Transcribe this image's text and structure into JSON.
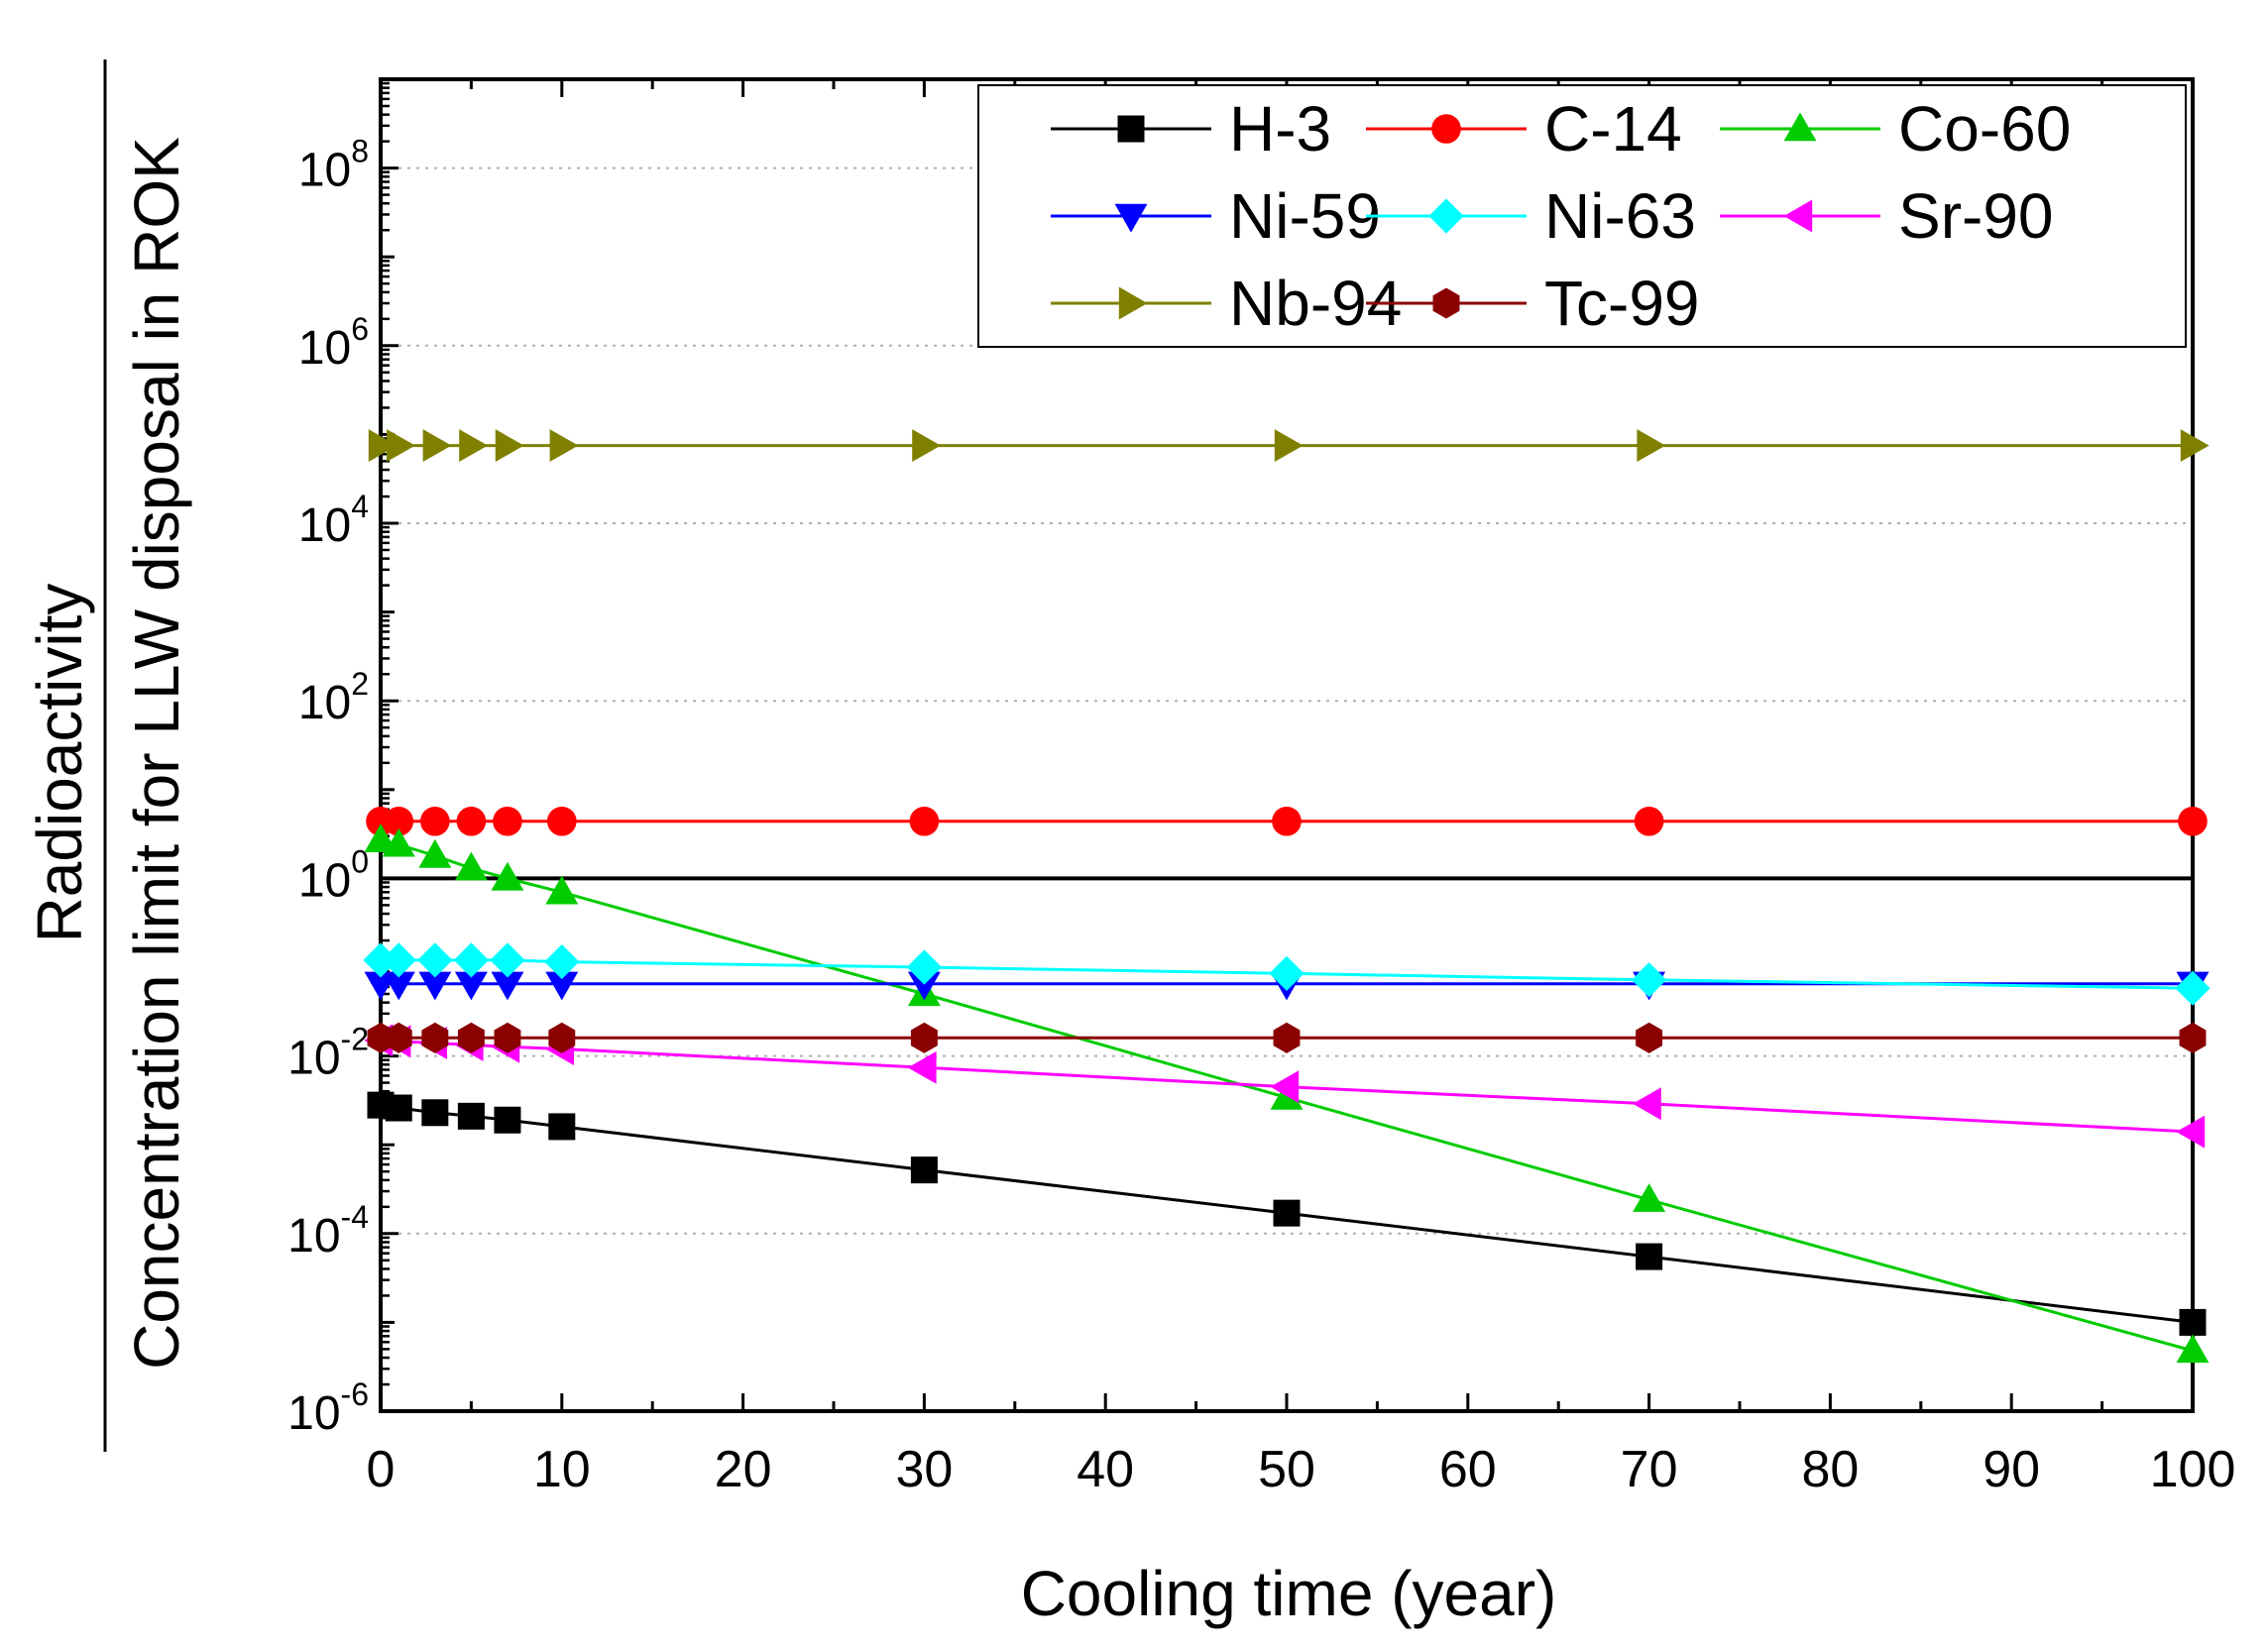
{
  "chart_data": {
    "type": "line",
    "xlabel": "Cooling time (year)",
    "ylabel_numerator": "Radioactivity",
    "ylabel_denominator": "Concentration limit for LLW disposal in ROK",
    "xlim": [
      0,
      100
    ],
    "ylim": [
      1e-06,
      1000000000.0
    ],
    "yscale": "log",
    "grid": "horizontal dotted at major y ticks",
    "legend_position": "top-right",
    "x_ticks": [
      "0",
      "10",
      "20",
      "30",
      "40",
      "50",
      "60",
      "70",
      "80",
      "90",
      "100"
    ],
    "y_ticks": [
      {
        "base": "10",
        "exp": "-6"
      },
      {
        "base": "10",
        "exp": "-4"
      },
      {
        "base": "10",
        "exp": "-2"
      },
      {
        "base": "10",
        "exp": "0"
      },
      {
        "base": "10",
        "exp": "2"
      },
      {
        "base": "10",
        "exp": "4"
      },
      {
        "base": "10",
        "exp": "6"
      },
      {
        "base": "10",
        "exp": "8"
      }
    ],
    "reference_line": {
      "y": 1
    },
    "x": [
      0,
      1,
      3,
      5,
      7,
      10,
      30,
      50,
      70,
      100
    ],
    "series": [
      {
        "name": "H-3",
        "color": "#000000",
        "marker": "square",
        "values": [
          0.0028,
          0.0026,
          0.0023,
          0.0021,
          0.0019,
          0.0016,
          0.00052,
          0.00017,
          5.5e-05,
          1e-05
        ]
      },
      {
        "name": "C-14",
        "color": "#ff0000",
        "marker": "circle",
        "values": [
          4.4,
          4.4,
          4.4,
          4.4,
          4.4,
          4.4,
          4.4,
          4.4,
          4.4,
          4.4
        ]
      },
      {
        "name": "Co-60",
        "color": "#00cc00",
        "marker": "triangle-up",
        "values": [
          2.7,
          2.4,
          1.8,
          1.3,
          1.0,
          0.7,
          0.05,
          0.0034,
          0.00024,
          4.8e-06
        ]
      },
      {
        "name": "Ni-59",
        "color": "#0000ff",
        "marker": "triangle-down",
        "values": [
          0.065,
          0.065,
          0.065,
          0.065,
          0.065,
          0.065,
          0.065,
          0.065,
          0.065,
          0.065
        ]
      },
      {
        "name": "Ni-63",
        "color": "#00ffff",
        "marker": "diamond",
        "values": [
          0.12,
          0.12,
          0.12,
          0.12,
          0.12,
          0.115,
          0.1,
          0.085,
          0.072,
          0.058
        ]
      },
      {
        "name": "Sr-90",
        "color": "#ff00ff",
        "marker": "triangle-left",
        "values": [
          0.015,
          0.0146,
          0.014,
          0.0133,
          0.0127,
          0.012,
          0.0074,
          0.0045,
          0.0029,
          0.0014
        ]
      },
      {
        "name": "Nb-94",
        "color": "#808000",
        "marker": "triangle-right",
        "values": [
          75000,
          75000,
          75000,
          75000,
          75000,
          75000,
          75000,
          75000,
          75000,
          75000
        ]
      },
      {
        "name": "Tc-99",
        "color": "#8b0000",
        "marker": "hexagon",
        "values": [
          0.016,
          0.016,
          0.016,
          0.016,
          0.016,
          0.016,
          0.016,
          0.016,
          0.016,
          0.016
        ]
      }
    ]
  }
}
